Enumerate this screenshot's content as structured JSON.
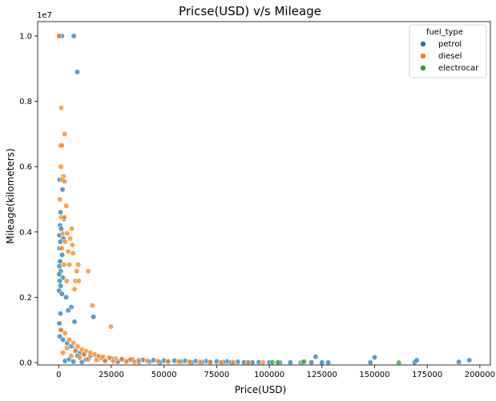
{
  "chart_data": {
    "type": "scatter",
    "title": "Pricse(USD) v/s Mileage",
    "xlabel": "Price(USD)",
    "ylabel": "Mileage(kilometers)",
    "y_offset_label": "1e7",
    "xlim": [
      -10000,
      205000
    ],
    "ylim": [
      -1e-07,
      10500000
    ],
    "x_ticks": [
      0,
      25000,
      50000,
      75000,
      100000,
      125000,
      150000,
      175000,
      200000
    ],
    "x_tick_labels": [
      "0",
      "25000",
      "50000",
      "75000",
      "100000",
      "125000",
      "150000",
      "175000",
      "200000"
    ],
    "y_ticks": [
      0,
      2000000,
      4000000,
      6000000,
      8000000,
      10000000
    ],
    "y_tick_labels": [
      "0.0",
      "0.2",
      "0.4",
      "0.6",
      "0.8",
      "1.0"
    ],
    "grid": false,
    "legend": {
      "title": "fuel_type",
      "placement": "top-right"
    },
    "series": [
      {
        "name": "petrol",
        "color": "#1f77b4",
        "points": [
          [
            200,
            10000000
          ],
          [
            1500,
            10000000
          ],
          [
            7200,
            10000000
          ],
          [
            8800,
            8900000
          ],
          [
            500,
            5600000
          ],
          [
            1800,
            5300000
          ],
          [
            900,
            4600000
          ],
          [
            2500,
            4400000
          ],
          [
            600,
            4200000
          ],
          [
            1200,
            4100000
          ],
          [
            300,
            3900000
          ],
          [
            2200,
            3800000
          ],
          [
            800,
            3700000
          ],
          [
            400,
            3500000
          ],
          [
            1600,
            3300000
          ],
          [
            700,
            3100000
          ],
          [
            300,
            2950000
          ],
          [
            1000,
            2800000
          ],
          [
            200,
            2700000
          ],
          [
            2000,
            2600000
          ],
          [
            500,
            2500000
          ],
          [
            900,
            2350000
          ],
          [
            200,
            2200000
          ],
          [
            1500,
            2100000
          ],
          [
            3500,
            2000000
          ],
          [
            6000,
            1700000
          ],
          [
            4500,
            1600000
          ],
          [
            800,
            1500000
          ],
          [
            16500,
            1400000
          ],
          [
            7500,
            1250000
          ],
          [
            300,
            1200000
          ],
          [
            1200,
            1000000
          ],
          [
            500,
            800000
          ],
          [
            2000,
            700000
          ],
          [
            4000,
            600000
          ],
          [
            6000,
            500000
          ],
          [
            8000,
            400000
          ],
          [
            10000,
            300000
          ],
          [
            12000,
            250000
          ],
          [
            15000,
            200000
          ],
          [
            18000,
            180000
          ],
          [
            20000,
            150000
          ],
          [
            25000,
            120000
          ],
          [
            30000,
            100000
          ],
          [
            35000,
            90000
          ],
          [
            40000,
            80000
          ],
          [
            45000,
            70000
          ],
          [
            50000,
            60000
          ],
          [
            55000,
            55000
          ],
          [
            60000,
            50000
          ],
          [
            65000,
            45000
          ],
          [
            70000,
            40000
          ],
          [
            75000,
            35000
          ],
          [
            80000,
            30000
          ],
          [
            85000,
            25000
          ],
          [
            90000,
            20000
          ],
          [
            95000,
            15000
          ],
          [
            100000,
            10000
          ],
          [
            105000,
            8000
          ],
          [
            110000,
            6000
          ],
          [
            115000,
            5000
          ],
          [
            120000,
            4000
          ],
          [
            122000,
            180000
          ],
          [
            125000,
            3000
          ],
          [
            128000,
            2000
          ],
          [
            148000,
            5000
          ],
          [
            150000,
            160000
          ],
          [
            169000,
            10000
          ],
          [
            170000,
            70000
          ],
          [
            190000,
            20000
          ],
          [
            195000,
            70000
          ],
          [
            3000,
            50000
          ],
          [
            5000,
            100000
          ],
          [
            7000,
            30000
          ],
          [
            9000,
            200000
          ],
          [
            11000,
            20000
          ],
          [
            13000,
            90000
          ],
          [
            22000,
            40000
          ],
          [
            28000,
            30000
          ],
          [
            33000,
            60000
          ],
          [
            38000,
            20000
          ],
          [
            43000,
            30000
          ],
          [
            48000,
            10000
          ],
          [
            52000,
            20000
          ],
          [
            58000,
            30000
          ],
          [
            63000,
            10000
          ],
          [
            68000,
            20000
          ],
          [
            72000,
            10000
          ],
          [
            78000,
            15000
          ],
          [
            82000,
            5000
          ],
          [
            88000,
            8000
          ],
          [
            92000,
            5000
          ]
        ]
      },
      {
        "name": "diesel",
        "color": "#ff7f0e",
        "points": [
          [
            200,
            10000000
          ],
          [
            1200,
            7800000
          ],
          [
            2800,
            7000000
          ],
          [
            800,
            6650000
          ],
          [
            1500,
            6650000
          ],
          [
            1000,
            6000000
          ],
          [
            2200,
            5700000
          ],
          [
            1800,
            5600000
          ],
          [
            2700,
            5550000
          ],
          [
            500,
            5000000
          ],
          [
            3600,
            4800000
          ],
          [
            1200,
            4450000
          ],
          [
            2600,
            4450000
          ],
          [
            6200,
            4100000
          ],
          [
            2000,
            3950000
          ],
          [
            4000,
            3950000
          ],
          [
            3000,
            3700000
          ],
          [
            5500,
            3800000
          ],
          [
            1500,
            3500000
          ],
          [
            6500,
            3600000
          ],
          [
            4500,
            3400000
          ],
          [
            6800,
            3350000
          ],
          [
            2500,
            3000000
          ],
          [
            5000,
            3000000
          ],
          [
            9200,
            3000000
          ],
          [
            8500,
            2800000
          ],
          [
            14000,
            2800000
          ],
          [
            3800,
            2500000
          ],
          [
            8000,
            2500000
          ],
          [
            9500,
            2500000
          ],
          [
            7500,
            2250000
          ],
          [
            16000,
            1750000
          ],
          [
            24800,
            1100000
          ],
          [
            1000,
            1000000
          ],
          [
            3000,
            900000
          ],
          [
            5000,
            700000
          ],
          [
            7000,
            600000
          ],
          [
            9000,
            500000
          ],
          [
            11000,
            400000
          ],
          [
            13000,
            350000
          ],
          [
            15000,
            300000
          ],
          [
            17000,
            250000
          ],
          [
            19000,
            200000
          ],
          [
            21000,
            180000
          ],
          [
            24000,
            150000
          ],
          [
            27000,
            120000
          ],
          [
            30000,
            100000
          ],
          [
            34000,
            90000
          ],
          [
            38000,
            70000
          ],
          [
            42000,
            60000
          ],
          [
            47000,
            50000
          ],
          [
            52000,
            40000
          ],
          [
            57000,
            30000
          ],
          [
            62000,
            25000
          ],
          [
            67000,
            20000
          ],
          [
            72000,
            15000
          ],
          [
            77000,
            10000
          ],
          [
            83000,
            8000
          ],
          [
            90000,
            5000
          ],
          [
            97000,
            4000
          ],
          [
            2000,
            300000
          ],
          [
            4000,
            450000
          ],
          [
            6000,
            200000
          ],
          [
            8000,
            350000
          ],
          [
            10000,
            150000
          ],
          [
            12000,
            250000
          ],
          [
            14000,
            100000
          ],
          [
            18000,
            80000
          ],
          [
            22000,
            60000
          ],
          [
            26000,
            40000
          ],
          [
            32000,
            30000
          ],
          [
            36000,
            20000
          ]
        ]
      },
      {
        "name": "electrocar",
        "color": "#2ca02c",
        "points": [
          [
            101500,
            10000
          ],
          [
            104000,
            5000
          ],
          [
            116000,
            3000
          ],
          [
            116500,
            30000
          ],
          [
            161500,
            0
          ]
        ]
      }
    ]
  }
}
